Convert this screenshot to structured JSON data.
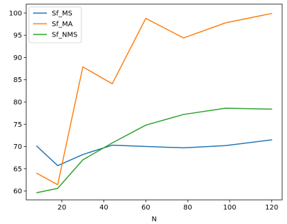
{
  "chart_data": {
    "type": "line",
    "xlabel": "N",
    "ylabel": "",
    "xlim": [
      3,
      125
    ],
    "ylim": [
      58,
      102
    ],
    "xticks": [
      20,
      40,
      60,
      80,
      100,
      120
    ],
    "yticks": [
      60,
      65,
      70,
      75,
      80,
      85,
      90,
      95,
      100
    ],
    "grid": false,
    "legend_position": "top-left",
    "series": [
      {
        "name": "Sf_MS",
        "color": "#1f77b4",
        "x": [
          8,
          18,
          30,
          44,
          60,
          78,
          98,
          120
        ],
        "y": [
          70.1,
          65.7,
          68.2,
          70.3,
          70.0,
          69.7,
          70.2,
          71.5
        ]
      },
      {
        "name": "Sf_MA",
        "color": "#ff7f0e",
        "x": [
          8,
          18,
          30,
          44,
          60,
          78,
          98,
          120
        ],
        "y": [
          64.0,
          61.4,
          87.9,
          84.1,
          98.8,
          94.4,
          97.8,
          99.9
        ]
      },
      {
        "name": "Sf_NMS",
        "color": "#2ca02c",
        "x": [
          8,
          18,
          30,
          44,
          60,
          78,
          98,
          120
        ],
        "y": [
          59.6,
          60.6,
          67.0,
          70.8,
          74.8,
          77.2,
          78.6,
          78.4
        ]
      }
    ]
  }
}
